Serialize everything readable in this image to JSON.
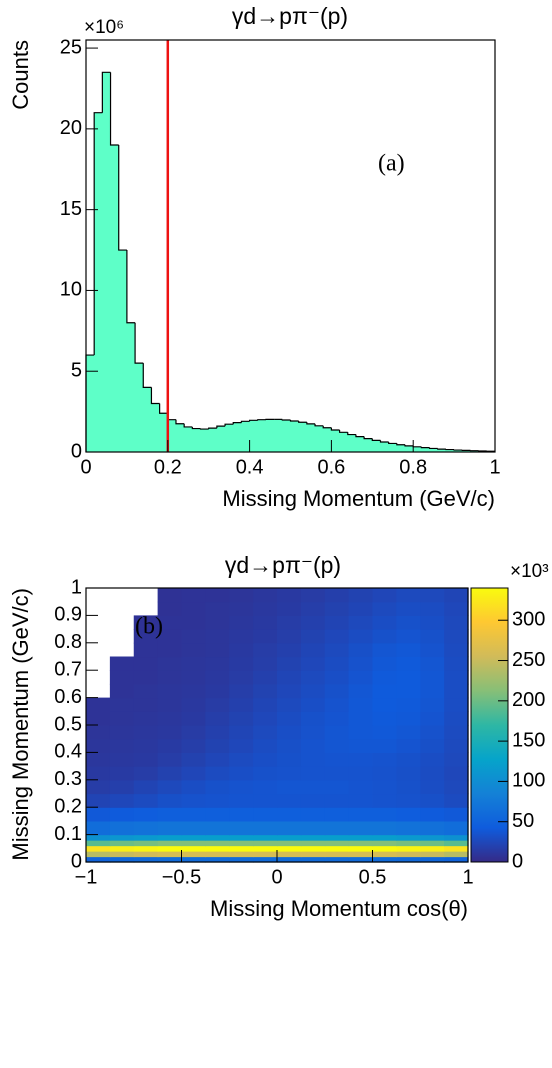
{
  "chart_data": [
    {
      "type": "histogram",
      "title": "γd→pπ⁻(p)",
      "xlabel": "Missing Momentum (GeV/c)",
      "ylabel": "Counts",
      "y_multiplier": "×10⁶",
      "annotation": "(a)",
      "bins": [
        0,
        0.02,
        0.04,
        0.06,
        0.08,
        0.1,
        0.12,
        0.14,
        0.16,
        0.18,
        0.2,
        0.22,
        0.24,
        0.26,
        0.28,
        0.3,
        0.32,
        0.34,
        0.36,
        0.38,
        0.4,
        0.42,
        0.44,
        0.46,
        0.48,
        0.5,
        0.52,
        0.54,
        0.56,
        0.58,
        0.6,
        0.62,
        0.64,
        0.66,
        0.68,
        0.7,
        0.72,
        0.74,
        0.76,
        0.78,
        0.8,
        0.82,
        0.84,
        0.86,
        0.88,
        0.9,
        0.92,
        0.94,
        0.96,
        0.98,
        1
      ],
      "counts": [
        6,
        21,
        23.5,
        19,
        12.5,
        8,
        5.5,
        4,
        3,
        2.4,
        2,
        1.75,
        1.55,
        1.45,
        1.42,
        1.48,
        1.6,
        1.72,
        1.82,
        1.9,
        1.96,
        2,
        2.02,
        2.02,
        1.98,
        1.92,
        1.84,
        1.74,
        1.62,
        1.5,
        1.36,
        1.22,
        1.08,
        0.95,
        0.83,
        0.72,
        0.62,
        0.53,
        0.45,
        0.38,
        0.32,
        0.27,
        0.22,
        0.18,
        0.15,
        0.12,
        0.1,
        0.08,
        0.06,
        0.05
      ],
      "color": "#5effc8",
      "edgecolor": "#000000",
      "xlim": [
        0,
        1
      ],
      "ylim": [
        0,
        25.5
      ],
      "xticks": [
        0,
        0.2,
        0.4,
        0.6,
        0.8,
        1
      ],
      "yticks": [
        0,
        5,
        10,
        15,
        20,
        25
      ],
      "cut_x": 0.2,
      "cut_color": "#ee1111"
    },
    {
      "type": "heatmap",
      "title": "γd→pπ⁻(p)",
      "xlabel": "Missing Momentum cos(θ)",
      "ylabel": "Missing Momentum (GeV/c)",
      "z_multiplier": "×10³",
      "annotation": "(b)",
      "xbins": [
        -1,
        -0.875,
        -0.75,
        -0.625,
        -0.5,
        -0.375,
        -0.25,
        -0.125,
        0,
        0.125,
        0.25,
        0.375,
        0.5,
        0.625,
        0.75,
        0.875,
        1
      ],
      "ybins": [
        0,
        0.02,
        0.04,
        0.06,
        0.08,
        0.1,
        0.15,
        0.2,
        0.25,
        0.3,
        0.35,
        0.4,
        0.45,
        0.5,
        0.55,
        0.6,
        0.65,
        0.7,
        0.75,
        0.8,
        0.85,
        0.9,
        0.95,
        1
      ],
      "z": [
        [
          50,
          55,
          58,
          60,
          60,
          60,
          60,
          60,
          60,
          60,
          60,
          60,
          60,
          58,
          55,
          50
        ],
        [
          240,
          250,
          255,
          260,
          260,
          260,
          260,
          260,
          260,
          260,
          260,
          260,
          260,
          255,
          250,
          240
        ],
        [
          320,
          330,
          335,
          340,
          340,
          340,
          340,
          340,
          340,
          340,
          340,
          340,
          340,
          335,
          330,
          320
        ],
        [
          190,
          200,
          205,
          210,
          210,
          210,
          210,
          210,
          210,
          210,
          210,
          210,
          210,
          205,
          200,
          190
        ],
        [
          105,
          110,
          115,
          120,
          120,
          120,
          120,
          120,
          120,
          120,
          120,
          120,
          120,
          115,
          110,
          105
        ],
        [
          62,
          66,
          68,
          70,
          70,
          70,
          70,
          70,
          70,
          70,
          70,
          70,
          70,
          68,
          66,
          62
        ],
        [
          40,
          42,
          44,
          46,
          46,
          46,
          46,
          46,
          46,
          46,
          46,
          46,
          46,
          44,
          42,
          40
        ],
        [
          22,
          25,
          28,
          32,
          34,
          35,
          36,
          36,
          36,
          36,
          36,
          36,
          35,
          34,
          32,
          28
        ],
        [
          16,
          18,
          22,
          26,
          30,
          33,
          35,
          36,
          37,
          37,
          37,
          36,
          35,
          33,
          30,
          26
        ],
        [
          13,
          14,
          16,
          20,
          24,
          28,
          31,
          33,
          34,
          35,
          35,
          35,
          34,
          32,
          29,
          25
        ],
        [
          11,
          12,
          13,
          16,
          20,
          24,
          28,
          31,
          33,
          35,
          36,
          36,
          35,
          33,
          30,
          26
        ],
        [
          10,
          11,
          12,
          14,
          17,
          21,
          25,
          29,
          32,
          35,
          37,
          38,
          38,
          36,
          32,
          27
        ],
        [
          9,
          10,
          11,
          12,
          15,
          19,
          23,
          27,
          31,
          34,
          37,
          39,
          40,
          38,
          34,
          28
        ],
        [
          8,
          9,
          10,
          11,
          13,
          17,
          21,
          25,
          29,
          33,
          36,
          39,
          41,
          40,
          36,
          29
        ],
        [
          8,
          9,
          9,
          10,
          12,
          15,
          19,
          23,
          27,
          31,
          35,
          39,
          42,
          41,
          37,
          30
        ],
        [
          null,
          8,
          9,
          10,
          11,
          13,
          17,
          21,
          25,
          29,
          33,
          38,
          42,
          42,
          38,
          30
        ],
        [
          null,
          8,
          8,
          9,
          10,
          12,
          15,
          19,
          23,
          27,
          31,
          36,
          41,
          42,
          38,
          30
        ],
        [
          null,
          8,
          8,
          9,
          10,
          11,
          14,
          17,
          21,
          25,
          29,
          34,
          39,
          41,
          37,
          29
        ],
        [
          null,
          null,
          8,
          8,
          9,
          10,
          13,
          16,
          19,
          23,
          27,
          32,
          37,
          39,
          35,
          28
        ],
        [
          null,
          null,
          8,
          8,
          9,
          10,
          12,
          14,
          17,
          21,
          25,
          29,
          33,
          36,
          33,
          27
        ],
        [
          null,
          null,
          7,
          8,
          8,
          9,
          11,
          13,
          16,
          19,
          22,
          26,
          30,
          33,
          31,
          26
        ],
        [
          null,
          null,
          null,
          7,
          8,
          9,
          10,
          12,
          14,
          17,
          20,
          23,
          27,
          30,
          29,
          25
        ],
        [
          null,
          null,
          null,
          7,
          8,
          8,
          9,
          11,
          13,
          15,
          18,
          21,
          24,
          27,
          26,
          23
        ]
      ],
      "xlim": [
        -1,
        1
      ],
      "ylim": [
        0,
        1
      ],
      "zlim": [
        0,
        340
      ],
      "xticks": [
        {
          "value": -1,
          "label": "−1"
        },
        {
          "value": -0.5,
          "label": "−0.5"
        },
        0,
        0.5,
        1
      ],
      "yticks": [
        0,
        0.1,
        0.2,
        0.3,
        0.4,
        0.5,
        0.6,
        0.7,
        0.8,
        0.9,
        1
      ],
      "zticks": [
        0,
        50,
        100,
        150,
        200,
        250,
        300
      ],
      "colorscale": [
        "#352a87",
        "#0f5cdd",
        "#1481d6",
        "#06a4ca",
        "#2eb7a4",
        "#87bf77",
        "#d1bb59",
        "#fec832",
        "#f9fb0e"
      ]
    }
  ]
}
